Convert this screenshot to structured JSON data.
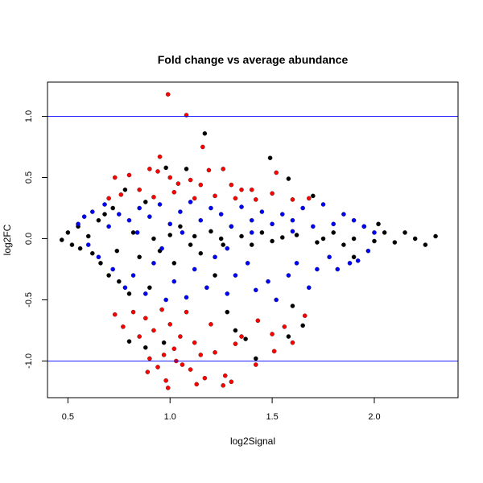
{
  "chart_data": {
    "type": "scatter",
    "title": "Fold change vs average abundance",
    "xlabel": "log2Signal",
    "ylabel": "log2FC",
    "xlim": [
      0.4,
      2.41
    ],
    "ylim": [
      -1.3,
      1.28
    ],
    "xticks": [
      0.5,
      1.0,
      1.5,
      2.0
    ],
    "xtick_labels": [
      "0.5",
      "1.0",
      "1.5",
      "2.0"
    ],
    "yticks": [
      -1.0,
      -0.5,
      0.0,
      0.5,
      1.0
    ],
    "ytick_labels": [
      "-1.0",
      "-0.5",
      "0.0",
      "0.5",
      "1.0"
    ],
    "hlines": [
      {
        "y": 1.0,
        "color": "#0000ff"
      },
      {
        "y": -1.0,
        "color": "#0000ff"
      }
    ],
    "grid": false,
    "series": [
      {
        "name": "black",
        "color": "#000000",
        "points": [
          [
            0.47,
            -0.01
          ],
          [
            0.5,
            0.05
          ],
          [
            0.52,
            -0.05
          ],
          [
            0.55,
            0.1
          ],
          [
            0.56,
            -0.08
          ],
          [
            0.6,
            0.02
          ],
          [
            0.62,
            -0.12
          ],
          [
            0.65,
            0.15
          ],
          [
            0.66,
            -0.2
          ],
          [
            0.7,
            -0.3
          ],
          [
            0.72,
            0.25
          ],
          [
            0.75,
            -0.35
          ],
          [
            0.78,
            0.4
          ],
          [
            0.8,
            -0.45
          ],
          [
            0.82,
            0.05
          ],
          [
            0.85,
            -0.15
          ],
          [
            0.88,
            0.3
          ],
          [
            0.9,
            -0.4
          ],
          [
            0.92,
            0.0
          ],
          [
            0.95,
            -0.1
          ],
          [
            0.98,
            0.58
          ],
          [
            1.0,
            0.03
          ],
          [
            1.02,
            -0.2
          ],
          [
            1.05,
            0.1
          ],
          [
            1.08,
            0.57
          ],
          [
            1.1,
            -0.05
          ],
          [
            1.12,
            0.02
          ],
          [
            1.15,
            -0.12
          ],
          [
            1.17,
            0.86
          ],
          [
            1.2,
            0.06
          ],
          [
            1.22,
            -0.3
          ],
          [
            1.25,
            0.0
          ],
          [
            1.28,
            -0.6
          ],
          [
            1.3,
            0.1
          ],
          [
            1.32,
            -0.75
          ],
          [
            1.35,
            0.02
          ],
          [
            1.37,
            -0.82
          ],
          [
            1.4,
            -0.05
          ],
          [
            1.42,
            -0.98
          ],
          [
            1.45,
            0.05
          ],
          [
            1.49,
            0.66
          ],
          [
            1.5,
            -0.02
          ],
          [
            1.55,
            0.01
          ],
          [
            1.58,
            0.49
          ],
          [
            1.6,
            -0.55
          ],
          [
            1.62,
            0.03
          ],
          [
            1.65,
            -0.71
          ],
          [
            1.7,
            0.35
          ],
          [
            1.72,
            -0.03
          ],
          [
            1.75,
            0.0
          ],
          [
            1.8,
            0.05
          ],
          [
            1.85,
            -0.05
          ],
          [
            1.9,
            0.0
          ],
          [
            1.95,
            0.1
          ],
          [
            2.0,
            -0.02
          ],
          [
            2.05,
            0.05
          ],
          [
            2.1,
            -0.03
          ],
          [
            2.15,
            0.05
          ],
          [
            2.2,
            0.0
          ],
          [
            2.25,
            -0.05
          ],
          [
            2.3,
            0.02
          ],
          [
            0.8,
            -0.84
          ],
          [
            0.88,
            -0.89
          ],
          [
            0.97,
            -0.85
          ],
          [
            1.58,
            -0.8
          ],
          [
            0.68,
            0.2
          ],
          [
            0.74,
            -0.1
          ],
          [
            1.26,
            -0.05
          ],
          [
            1.9,
            -0.15
          ],
          [
            2.02,
            0.12
          ]
        ]
      },
      {
        "name": "blue",
        "color": "#0000ff",
        "points": [
          [
            0.55,
            0.12
          ],
          [
            0.58,
            0.18
          ],
          [
            0.6,
            -0.05
          ],
          [
            0.62,
            0.22
          ],
          [
            0.65,
            -0.15
          ],
          [
            0.68,
            0.28
          ],
          [
            0.7,
            0.1
          ],
          [
            0.72,
            -0.25
          ],
          [
            0.75,
            0.2
          ],
          [
            0.78,
            -0.4
          ],
          [
            0.8,
            0.15
          ],
          [
            0.82,
            -0.3
          ],
          [
            0.85,
            0.25
          ],
          [
            0.88,
            -0.45
          ],
          [
            0.9,
            0.18
          ],
          [
            0.92,
            -0.2
          ],
          [
            0.95,
            0.28
          ],
          [
            0.98,
            -0.5
          ],
          [
            1.0,
            0.12
          ],
          [
            1.02,
            -0.35
          ],
          [
            1.05,
            0.22
          ],
          [
            1.08,
            -0.48
          ],
          [
            1.1,
            0.3
          ],
          [
            1.12,
            -0.25
          ],
          [
            1.15,
            0.15
          ],
          [
            1.18,
            -0.4
          ],
          [
            1.2,
            0.25
          ],
          [
            1.22,
            -0.15
          ],
          [
            1.25,
            0.2
          ],
          [
            1.28,
            -0.45
          ],
          [
            1.3,
            0.1
          ],
          [
            1.32,
            -0.3
          ],
          [
            1.35,
            0.26
          ],
          [
            1.38,
            -0.2
          ],
          [
            1.4,
            0.15
          ],
          [
            1.42,
            -0.42
          ],
          [
            1.45,
            0.22
          ],
          [
            1.48,
            -0.35
          ],
          [
            1.5,
            0.12
          ],
          [
            1.52,
            -0.5
          ],
          [
            1.55,
            0.2
          ],
          [
            1.58,
            -0.3
          ],
          [
            1.6,
            0.15
          ],
          [
            1.62,
            -0.2
          ],
          [
            1.65,
            0.25
          ],
          [
            1.68,
            -0.4
          ],
          [
            1.7,
            0.1
          ],
          [
            1.72,
            -0.25
          ],
          [
            1.75,
            0.28
          ],
          [
            1.78,
            -0.15
          ],
          [
            1.8,
            0.12
          ],
          [
            1.82,
            -0.25
          ],
          [
            1.85,
            0.2
          ],
          [
            1.88,
            -0.2
          ],
          [
            1.9,
            0.15
          ],
          [
            1.92,
            -0.18
          ],
          [
            1.95,
            0.1
          ],
          [
            1.97,
            -0.1
          ],
          [
            2.0,
            0.05
          ],
          [
            0.84,
            0.05
          ],
          [
            1.06,
            0.05
          ],
          [
            1.4,
            0.05
          ],
          [
            1.6,
            0.06
          ],
          [
            0.96,
            -0.08
          ],
          [
            1.28,
            -0.08
          ]
        ]
      },
      {
        "name": "red",
        "color": "#ff0000",
        "points": [
          [
            0.99,
            1.18
          ],
          [
            1.08,
            1.01
          ],
          [
            1.16,
            0.75
          ],
          [
            0.95,
            0.67
          ],
          [
            0.73,
            0.5
          ],
          [
            0.8,
            0.52
          ],
          [
            0.9,
            0.57
          ],
          [
            0.94,
            0.55
          ],
          [
            1.0,
            0.5
          ],
          [
            1.04,
            0.45
          ],
          [
            1.1,
            0.48
          ],
          [
            1.15,
            0.44
          ],
          [
            1.19,
            0.56
          ],
          [
            1.26,
            0.57
          ],
          [
            1.3,
            0.44
          ],
          [
            1.35,
            0.4
          ],
          [
            1.4,
            0.4
          ],
          [
            1.52,
            0.54
          ],
          [
            1.5,
            0.37
          ],
          [
            0.7,
            0.33
          ],
          [
            0.76,
            0.36
          ],
          [
            0.85,
            0.4
          ],
          [
            0.92,
            0.34
          ],
          [
            1.02,
            0.38
          ],
          [
            1.12,
            0.33
          ],
          [
            1.22,
            0.35
          ],
          [
            1.32,
            0.33
          ],
          [
            1.42,
            0.32
          ],
          [
            1.6,
            0.32
          ],
          [
            1.68,
            0.33
          ],
          [
            0.73,
            -0.62
          ],
          [
            0.77,
            -0.72
          ],
          [
            0.82,
            -0.6
          ],
          [
            0.85,
            -0.8
          ],
          [
            0.88,
            -0.65
          ],
          [
            0.89,
            -1.09
          ],
          [
            0.9,
            -0.98
          ],
          [
            0.92,
            -0.75
          ],
          [
            0.94,
            -1.05
          ],
          [
            0.96,
            -0.58
          ],
          [
            0.97,
            -0.95
          ],
          [
            0.98,
            -1.16
          ],
          [
            0.99,
            -1.22
          ],
          [
            1.0,
            -0.7
          ],
          [
            1.02,
            -0.9
          ],
          [
            1.03,
            -1.0
          ],
          [
            1.05,
            -0.8
          ],
          [
            1.06,
            -1.03
          ],
          [
            1.08,
            -0.6
          ],
          [
            1.1,
            -1.07
          ],
          [
            1.12,
            -0.85
          ],
          [
            1.13,
            -1.19
          ],
          [
            1.15,
            -0.95
          ],
          [
            1.17,
            -1.14
          ],
          [
            1.2,
            -0.7
          ],
          [
            1.22,
            -0.93
          ],
          [
            1.26,
            -1.2
          ],
          [
            1.27,
            -1.12
          ],
          [
            1.3,
            -1.17
          ],
          [
            1.32,
            -0.86
          ],
          [
            1.35,
            -0.8
          ],
          [
            1.43,
            -0.67
          ],
          [
            1.42,
            -1.03
          ],
          [
            1.5,
            -0.78
          ],
          [
            1.51,
            -0.92
          ],
          [
            1.56,
            -0.72
          ],
          [
            1.6,
            -0.85
          ],
          [
            1.66,
            -0.63
          ]
        ]
      }
    ]
  }
}
